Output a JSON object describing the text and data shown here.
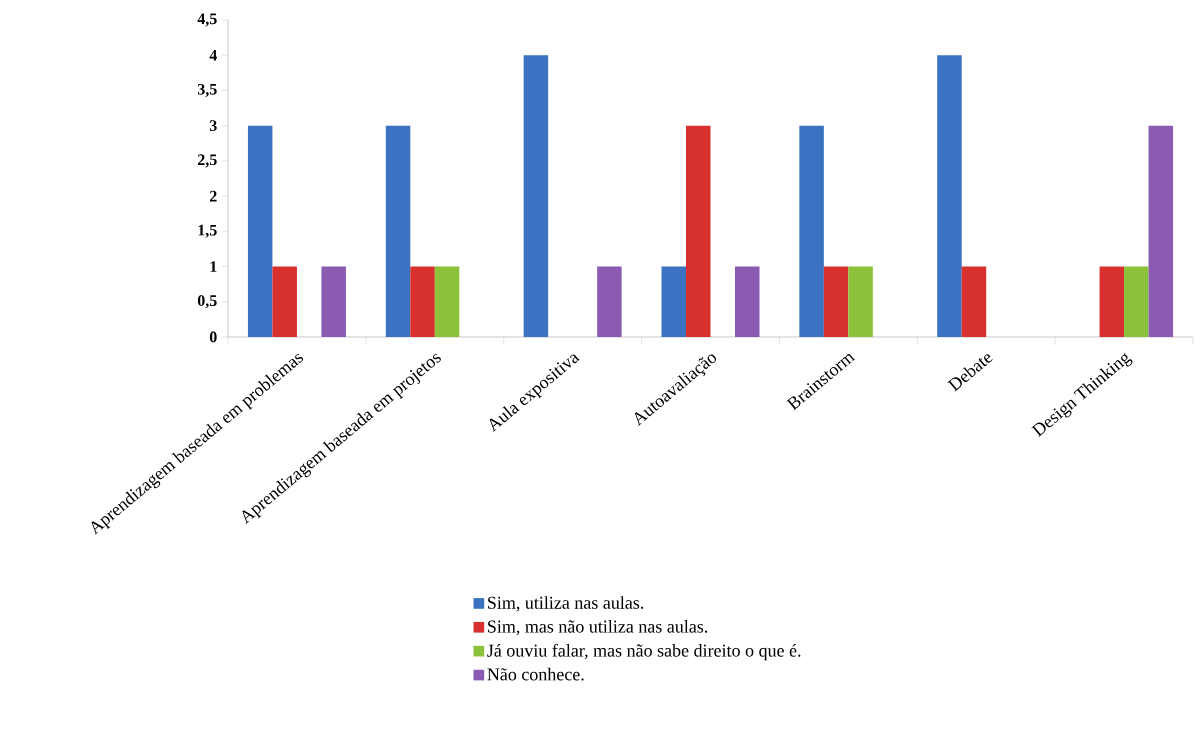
{
  "chart_data": {
    "type": "bar",
    "categories": [
      "Aprendizagem baseada em problemas",
      "Aprendizagem baseada em projetos",
      "Aula expositiva",
      "Autoavaliação",
      "Brainstorm",
      "Debate",
      "Design Thinking"
    ],
    "series": [
      {
        "name": "Sim, utiliza nas aulas.",
        "color": "#3b72c2",
        "values": [
          3,
          3,
          4,
          1,
          3,
          4,
          null
        ]
      },
      {
        "name": "Sim, mas não utiliza nas aulas.",
        "color": "#d8302e",
        "values": [
          1,
          1,
          null,
          3,
          1,
          1,
          1
        ]
      },
      {
        "name": "Já ouviu falar, mas não sabe direito o que é.",
        "color": "#8cc23a",
        "values": [
          null,
          1,
          null,
          null,
          1,
          null,
          1
        ]
      },
      {
        "name": "Não conhece.",
        "color": "#8a5bb0",
        "values": [
          1,
          null,
          1,
          1,
          null,
          null,
          3
        ]
      }
    ],
    "ylim": [
      0,
      4.5
    ],
    "yticks": [
      0,
      {
        "value": 0.5,
        "label": "0,5"
      },
      1,
      {
        "value": 1.5,
        "label": "1,5"
      },
      2,
      {
        "value": 2.5,
        "label": "2,5"
      },
      3,
      {
        "value": 3.5,
        "label": "3,5"
      },
      4,
      {
        "value": 4.5,
        "label": "4,5"
      }
    ],
    "grid": false,
    "legend": "bottom"
  }
}
